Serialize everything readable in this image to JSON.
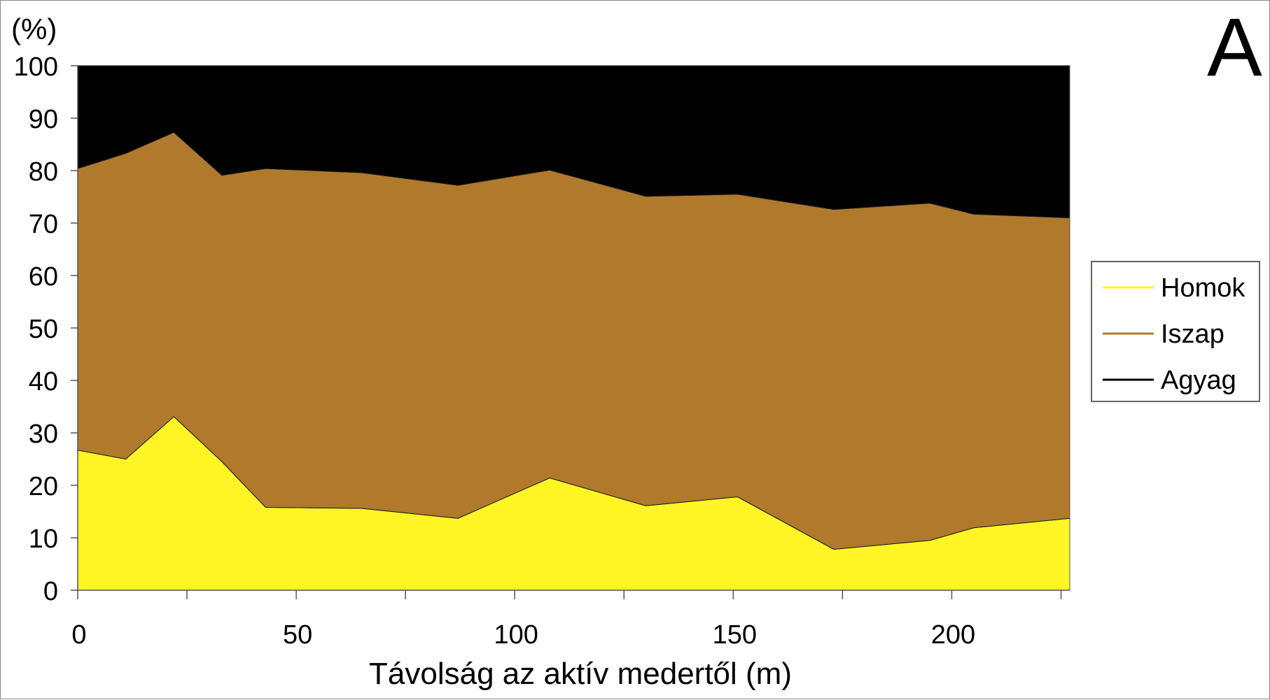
{
  "chart_data": {
    "type": "area",
    "stacked": true,
    "panel_label": "A",
    "ylabel": "(%)",
    "xlabel": "Távolság az aktív medertől (m)",
    "xlim": [
      0,
      227
    ],
    "ylim": [
      0,
      100
    ],
    "x_ticks": [
      0,
      50,
      100,
      150,
      200
    ],
    "x_minor_ticks": [
      25,
      75,
      125,
      175,
      225
    ],
    "y_ticks": [
      0,
      10,
      20,
      30,
      40,
      50,
      60,
      70,
      80,
      90,
      100
    ],
    "x": [
      0,
      11,
      22,
      33,
      43,
      65,
      87,
      108,
      130,
      151,
      173,
      195,
      205,
      227
    ],
    "series": [
      {
        "name": "Homok",
        "color": "#fff524",
        "values": [
          26.7,
          25.0,
          33.1,
          24.5,
          15.8,
          15.6,
          13.7,
          21.4,
          16.1,
          17.8,
          7.8,
          9.5,
          11.9,
          13.7
        ]
      },
      {
        "name": "Iszap",
        "color": "#b0792c",
        "values": [
          53.7,
          58.3,
          54.2,
          54.6,
          64.6,
          64.0,
          63.5,
          58.7,
          59.0,
          57.7,
          64.8,
          64.3,
          59.8,
          57.3
        ]
      },
      {
        "name": "Agyag",
        "color": "#000000",
        "values": [
          19.6,
          16.7,
          12.7,
          20.9,
          19.6,
          20.4,
          22.8,
          19.9,
          24.9,
          24.5,
          27.4,
          26.2,
          28.3,
          29.0
        ]
      }
    ],
    "grid": false,
    "legend_position": "right"
  }
}
